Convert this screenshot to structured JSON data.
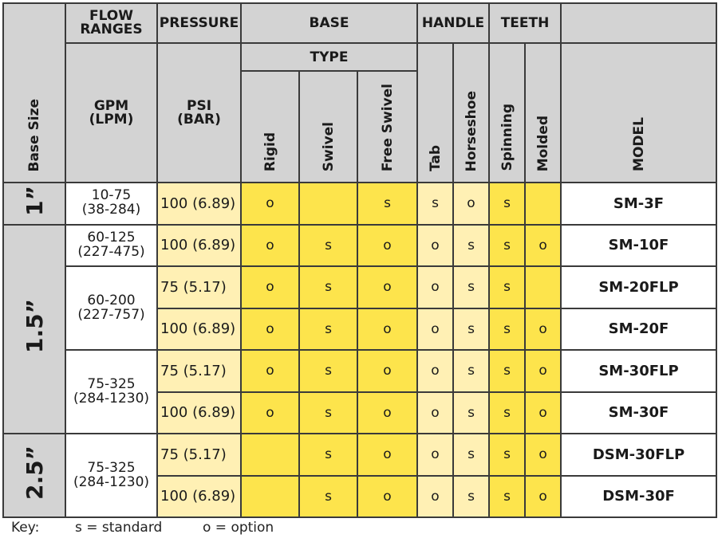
{
  "header": {
    "base_size": "Base Size",
    "flow_ranges": "FLOW RANGES",
    "pressure": "PRESSURE",
    "base": "BASE",
    "handle": "HANDLE",
    "teeth": "TEETH",
    "type": "TYPE",
    "gpm": "GPM (LPM)",
    "psi": "PSI (BAR)",
    "model": "MODEL",
    "columns": [
      "Rigid",
      "Swivel",
      "Free Swivel",
      "Tab",
      "Horseshoe",
      "Spinning",
      "Molded"
    ]
  },
  "groups": [
    {
      "size": "1”",
      "flows": [
        {
          "range": "10-75 (38-284)",
          "rows": [
            {
              "psi": "100 (6.89)",
              "marks": [
                "o",
                null,
                "s",
                "s",
                "o",
                "s",
                null
              ],
              "model": "SM-3F"
            }
          ]
        }
      ]
    },
    {
      "size": "1.5”",
      "flows": [
        {
          "range": "60-125 (227-475)",
          "rows": [
            {
              "psi": "100 (6.89)",
              "marks": [
                "o",
                "s",
                "o",
                "o",
                "s",
                "s",
                "o"
              ],
              "model": "SM-10F"
            }
          ]
        },
        {
          "range": "60-200 (227-757)",
          "rows": [
            {
              "psi": "75 (5.17)",
              "marks": [
                "o",
                "s",
                "o",
                "o",
                "s",
                "s",
                null
              ],
              "model": "SM-20FLP"
            },
            {
              "psi": "100 (6.89)",
              "marks": [
                "o",
                "s",
                "o",
                "o",
                "s",
                "s",
                "o"
              ],
              "model": "SM-20F"
            }
          ]
        },
        {
          "range": "75-325 (284-1230)",
          "rows": [
            {
              "psi": "75 (5.17)",
              "marks": [
                "o",
                "s",
                "o",
                "o",
                "s",
                "s",
                "o"
              ],
              "model": "SM-30FLP"
            },
            {
              "psi": "100 (6.89)",
              "marks": [
                "o",
                "s",
                "o",
                "o",
                "s",
                "s",
                "o"
              ],
              "model": "SM-30F"
            }
          ]
        }
      ]
    },
    {
      "size": "2.5”",
      "flows": [
        {
          "range": "75-325 (284-1230)",
          "rows": [
            {
              "psi": "75 (5.17)",
              "marks": [
                null,
                "s",
                "o",
                "o",
                "s",
                "s",
                "o"
              ],
              "model": "DSM-30FLP"
            },
            {
              "psi": "100 (6.89)",
              "marks": [
                null,
                "s",
                "o",
                "o",
                "s",
                "s",
                "o"
              ],
              "model": "DSM-30F"
            }
          ]
        }
      ]
    }
  ],
  "key": {
    "label": "Key:",
    "standard": "s = standard",
    "option": "o = option"
  }
}
